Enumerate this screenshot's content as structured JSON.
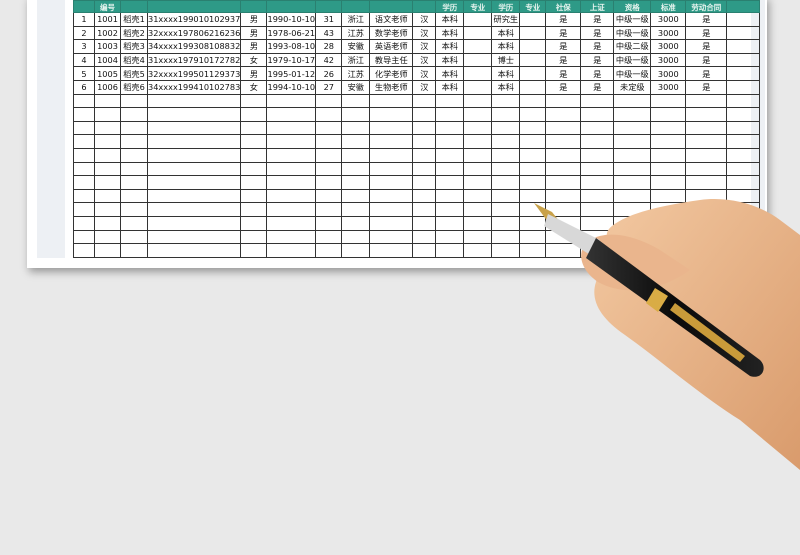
{
  "sheet": {
    "header_color": "#2e9a87",
    "headers": [
      "",
      "编号",
      "",
      "",
      "",
      "",
      "",
      "",
      "",
      "",
      "学历",
      "专业",
      "学历",
      "专业",
      "社保",
      "上证",
      "资格",
      "标准",
      "劳动合同",
      ""
    ],
    "rows": [
      [
        "1",
        "1001",
        "稻壳1",
        "31xxxx199010102937",
        "男",
        "1990-10-10",
        "31",
        "浙江",
        "语文老师",
        "汉",
        "本科",
        "",
        "研究生",
        "",
        "是",
        "是",
        "中级一级",
        "3000",
        "是",
        ""
      ],
      [
        "2",
        "1002",
        "稻壳2",
        "32xxxx197806216236",
        "男",
        "1978-06-21",
        "43",
        "江苏",
        "数学老师",
        "汉",
        "本科",
        "",
        "本科",
        "",
        "是",
        "是",
        "中级一级",
        "3000",
        "是",
        ""
      ],
      [
        "3",
        "1003",
        "稻壳3",
        "34xxxx199308108832",
        "男",
        "1993-08-10",
        "28",
        "安徽",
        "英语老师",
        "汉",
        "本科",
        "",
        "本科",
        "",
        "是",
        "是",
        "中级二级",
        "3000",
        "是",
        ""
      ],
      [
        "4",
        "1004",
        "稻壳4",
        "31xxxx197910172782",
        "女",
        "1979-10-17",
        "42",
        "浙江",
        "教导主任",
        "汉",
        "本科",
        "",
        "博士",
        "",
        "是",
        "是",
        "中级一级",
        "3000",
        "是",
        ""
      ],
      [
        "5",
        "1005",
        "稻壳5",
        "32xxxx199501129373",
        "男",
        "1995-01-12",
        "26",
        "江苏",
        "化学老师",
        "汉",
        "本科",
        "",
        "本科",
        "",
        "是",
        "是",
        "中级一级",
        "3000",
        "是",
        ""
      ],
      [
        "6",
        "1006",
        "稻壳6",
        "34xxxx199410102783",
        "女",
        "1994-10-10",
        "27",
        "安徽",
        "生物老师",
        "汉",
        "本科",
        "",
        "本科",
        "",
        "是",
        "是",
        "未定级",
        "3000",
        "是",
        ""
      ]
    ]
  }
}
